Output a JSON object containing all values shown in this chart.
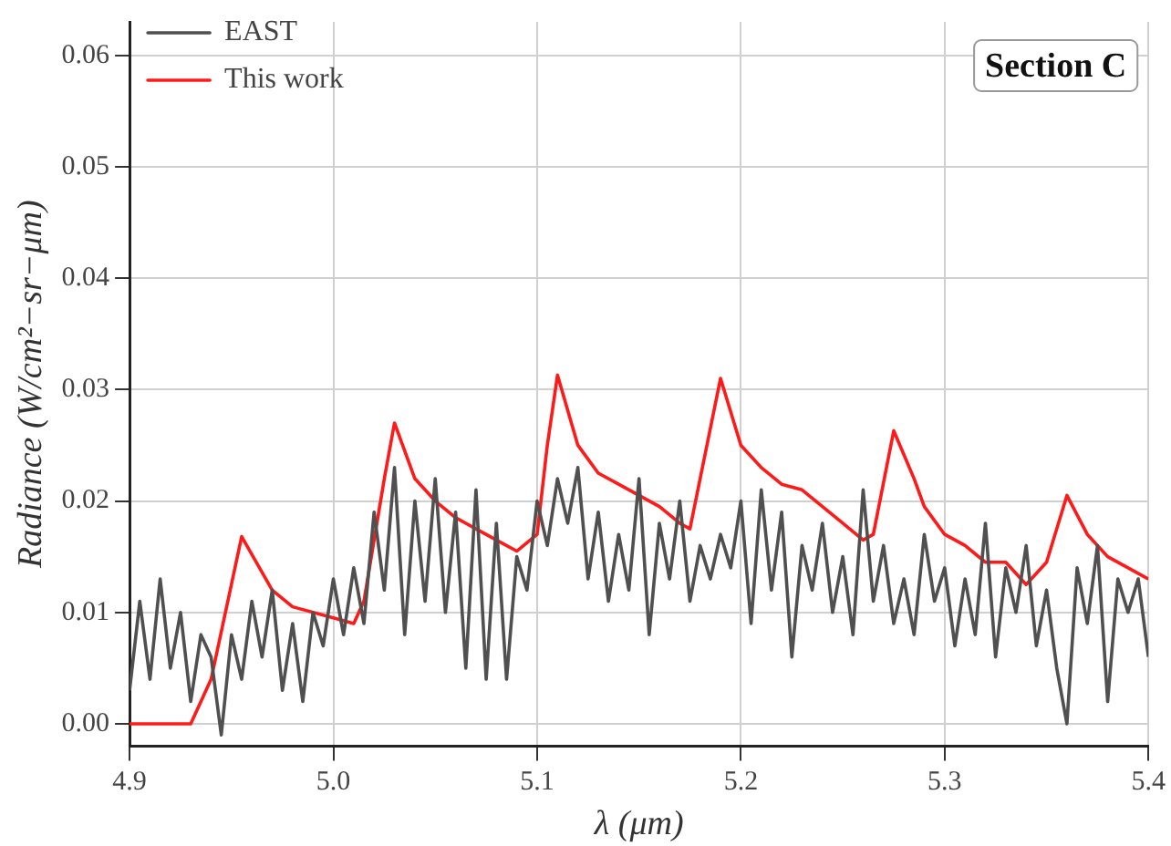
{
  "chart_data": {
    "type": "line",
    "xlabel": "λ (μm)",
    "ylabel": "Radiance (W/cm²−sr−μm)",
    "annotations": [
      "Section C"
    ],
    "xlim": [
      4.9,
      5.4
    ],
    "xticks": [
      4.9,
      {
        "value": 5,
        "label": "5.0"
      },
      5.1,
      5.2,
      5.3,
      5.4
    ],
    "ylim": [
      -0.002,
      0.063
    ],
    "yticks": [
      {
        "value": 0,
        "label": "0.00"
      },
      0.01,
      0.02,
      0.03,
      0.04,
      0.05,
      0.06
    ],
    "grid": true,
    "legend": "top left",
    "marker": "none",
    "line_style": "solid",
    "series": [
      {
        "name": "EAST",
        "color": "#505050",
        "x": [
          4.9,
          4.905,
          4.91,
          4.915,
          4.92,
          4.925,
          4.93,
          4.935,
          4.94,
          4.945,
          4.95,
          4.955,
          4.96,
          4.965,
          4.97,
          4.975,
          4.98,
          4.985,
          4.99,
          4.995,
          5,
          5.005,
          5.01,
          5.015,
          5.02,
          5.025,
          5.03,
          5.035,
          5.04,
          5.045,
          5.05,
          5.055,
          5.06,
          5.065,
          5.07,
          5.075,
          5.08,
          5.085,
          5.09,
          5.095,
          5.1,
          5.105,
          5.11,
          5.115,
          5.12,
          5.125,
          5.13,
          5.135,
          5.14,
          5.145,
          5.15,
          5.155,
          5.16,
          5.165,
          5.17,
          5.175,
          5.18,
          5.185,
          5.19,
          5.195,
          5.2,
          5.205,
          5.21,
          5.215,
          5.22,
          5.225,
          5.23,
          5.235,
          5.24,
          5.245,
          5.25,
          5.255,
          5.26,
          5.265,
          5.27,
          5.275,
          5.28,
          5.285,
          5.29,
          5.295,
          5.3,
          5.305,
          5.31,
          5.315,
          5.32,
          5.325,
          5.33,
          5.335,
          5.34,
          5.345,
          5.35,
          5.355,
          5.36,
          5.365,
          5.37,
          5.375,
          5.38,
          5.385,
          5.39,
          5.395,
          5.4
        ],
        "values": [
          0.003,
          0.011,
          0.004,
          0.013,
          0.005,
          0.01,
          0.002,
          0.008,
          0.006,
          -0.001,
          0.008,
          0.004,
          0.011,
          0.006,
          0.012,
          0.003,
          0.009,
          0.002,
          0.01,
          0.007,
          0.013,
          0.008,
          0.014,
          0.009,
          0.019,
          0.012,
          0.023,
          0.008,
          0.02,
          0.011,
          0.022,
          0.01,
          0.019,
          0.005,
          0.021,
          0.004,
          0.018,
          0.004,
          0.015,
          0.012,
          0.02,
          0.016,
          0.022,
          0.018,
          0.023,
          0.013,
          0.019,
          0.011,
          0.017,
          0.012,
          0.022,
          0.008,
          0.018,
          0.013,
          0.02,
          0.011,
          0.016,
          0.013,
          0.017,
          0.014,
          0.02,
          0.009,
          0.021,
          0.012,
          0.019,
          0.006,
          0.016,
          0.012,
          0.018,
          0.01,
          0.015,
          0.008,
          0.021,
          0.011,
          0.016,
          0.009,
          0.013,
          0.008,
          0.017,
          0.011,
          0.014,
          0.007,
          0.013,
          0.008,
          0.018,
          0.006,
          0.014,
          0.01,
          0.016,
          0.007,
          0.012,
          0.005,
          0,
          0.014,
          0.009,
          0.016,
          0.002,
          0.013,
          0.01,
          0.013,
          0.006
        ]
      },
      {
        "name": "This work",
        "color": "#ff1a1a",
        "x": [
          4.9,
          4.93,
          4.94,
          4.955,
          4.97,
          4.98,
          5,
          5.01,
          5.015,
          5.025,
          5.03,
          5.04,
          5.05,
          5.06,
          5.07,
          5.08,
          5.09,
          5.1,
          5.105,
          5.11,
          5.12,
          5.13,
          5.14,
          5.15,
          5.16,
          5.17,
          5.175,
          5.18,
          5.19,
          5.2,
          5.21,
          5.22,
          5.23,
          5.24,
          5.25,
          5.26,
          5.265,
          5.275,
          5.285,
          5.29,
          5.3,
          5.31,
          5.32,
          5.33,
          5.34,
          5.35,
          5.36,
          5.37,
          5.38,
          5.39,
          5.4
        ],
        "values": [
          0,
          0,
          0.004,
          0.0168,
          0.012,
          0.0105,
          0.0095,
          0.009,
          0.011,
          0.022,
          0.027,
          0.022,
          0.02,
          0.0185,
          0.0175,
          0.0165,
          0.0155,
          0.017,
          0.025,
          0.0313,
          0.025,
          0.0225,
          0.0215,
          0.0205,
          0.0195,
          0.018,
          0.0175,
          0.022,
          0.031,
          0.025,
          0.023,
          0.0215,
          0.021,
          0.0195,
          0.018,
          0.0165,
          0.017,
          0.0263,
          0.022,
          0.0195,
          0.017,
          0.016,
          0.0145,
          0.0145,
          0.0125,
          0.0145,
          0.0205,
          0.017,
          0.015,
          0.014,
          0.013
        ]
      }
    ]
  }
}
